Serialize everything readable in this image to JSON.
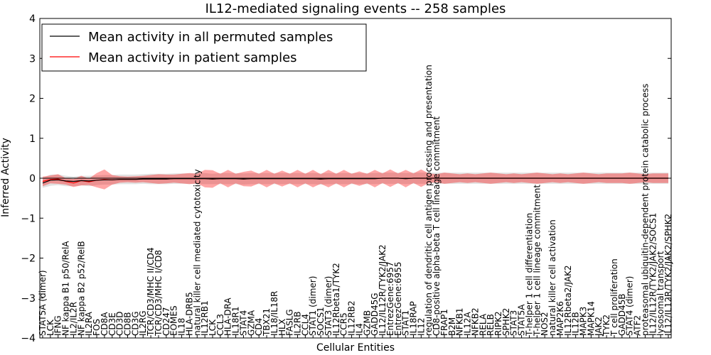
{
  "chart_data": {
    "type": "line",
    "title": "IL12-mediated signaling events -- 258 samples",
    "xlabel": "Cellular Entities",
    "ylabel": "Inferred Activity",
    "ylim": [
      -4,
      4
    ],
    "yticks": [
      4,
      3,
      2,
      1,
      0,
      -1,
      -2,
      -3,
      -4
    ],
    "ytick_labels": [
      "4",
      "3",
      "2",
      "1",
      "0",
      "−1",
      "−2",
      "−3",
      "−4"
    ],
    "grid": false,
    "legend_position": "upper-left",
    "categories": [
      "STAT5A (dimer)",
      "LCK",
      "IFNG",
      "NF kappa B1 p50/RelA",
      "IL2/IL2R",
      "NF kappa B2 p52/RelB",
      "IL2RA",
      "FOS",
      "CD8A",
      "CD3E",
      "CD3D",
      "CD8B",
      "CD3G",
      "IL2RG",
      "TCR/CD3/MHC II/CD4",
      "TCR/CD3/MHC I/CD8",
      "CD247",
      "EOMES",
      "IL18",
      "HLA-DRB5",
      "natural killer cell mediated cytotoxicity",
      "IL12RB1",
      "LCK",
      "CCL3",
      "HLA-DRA",
      "IL18R1",
      "STAT4",
      "GZMA",
      "CD4",
      "TBX21",
      "IL18/IL18R",
      "HLX",
      "FASLG",
      "IL2RB",
      "CCL4",
      "STAT1 (dimer)",
      "SOCS1",
      "STAT3 (dimer)",
      "IL12Rbeta1/TYK2",
      "CCR5",
      "IL12RB2",
      "IL4",
      "GZMB",
      "GADD45G",
      "IL12/IL12R/TYK2/JAK2",
      "EntrezGene:6957",
      "EntrezGene:6955",
      "STAT1",
      "IL18RAP",
      "IL12",
      "regulation of dendritic cell antigen processing and presentation",
      "CD8-positive alpha-beta T cell lineage commitment",
      "FRAP1",
      "B2M",
      "NFKB1",
      "IL12A",
      "NFKB2",
      "RELA",
      "RELB",
      "RIPK2",
      "SPHK2",
      "STAT3",
      "STAT5A",
      "T-helper 1 cell differentiation",
      "T-helper 1 cell lineage commitment",
      "NOS2",
      "natural killer cell activation",
      "MAP2K6",
      "IL12Rbeta2/JAK2",
      "IL12B",
      "MAPK3",
      "MAPK14",
      "JAK2",
      "TYK2",
      "T cell proliferation",
      "GADD45B",
      "STAT4 (dimer)",
      "ATF2",
      "proteasomal ubiquitin-dependent protein catabolic process",
      "IL12/IL12R/TYK2/JAK2/SOCS1",
      "lysosomal transport",
      "IL12/IL12R/TYK2/JAK2/SPHK2"
    ],
    "series": [
      {
        "name": "Mean activity in all permuted samples",
        "color": "#000000",
        "values": [
          -0.12,
          -0.05,
          -0.04,
          -0.07,
          -0.08,
          -0.06,
          -0.07,
          -0.05,
          -0.04,
          -0.04,
          -0.03,
          -0.03,
          -0.03,
          -0.02,
          -0.02,
          -0.02,
          -0.02,
          -0.01,
          -0.01,
          -0.01,
          -0.01,
          -0.01,
          -0.02,
          -0.01,
          -0.01,
          -0.01,
          -0.02,
          -0.01,
          -0.01,
          -0.01,
          -0.01,
          -0.01,
          -0.01,
          -0.01,
          -0.01,
          -0.01,
          -0.02,
          -0.01,
          -0.01,
          -0.01,
          -0.01,
          -0.01,
          -0.01,
          -0.01,
          0.0,
          0.0,
          0.0,
          -0.01,
          0.0,
          0.0,
          0.0,
          0.0,
          0.0,
          0.0,
          0.0,
          0.0,
          0.0,
          0.0,
          0.0,
          0.0,
          0.0,
          0.0,
          0.0,
          0.0,
          0.0,
          0.0,
          0.0,
          0.0,
          0.0,
          0.0,
          0.0,
          0.0,
          0.0,
          0.0,
          0.0,
          0.0,
          0.0,
          0.0,
          0.0,
          0.0,
          0.0,
          0.0
        ],
        "band": [
          0.12,
          0.14,
          0.13,
          0.13,
          0.12,
          0.12,
          0.13,
          0.12,
          0.12,
          0.12,
          0.12,
          0.12,
          0.12,
          0.12,
          0.13,
          0.13,
          0.13,
          0.13,
          0.13,
          0.13,
          0.14,
          0.14,
          0.13,
          0.14,
          0.14,
          0.14,
          0.14,
          0.14,
          0.14,
          0.14,
          0.14,
          0.14,
          0.14,
          0.14,
          0.14,
          0.14,
          0.14,
          0.14,
          0.14,
          0.14,
          0.14,
          0.14,
          0.14,
          0.14,
          0.14,
          0.14,
          0.14,
          0.14,
          0.14,
          0.14,
          0.14,
          0.14,
          0.14,
          0.14,
          0.14,
          0.14,
          0.14,
          0.14,
          0.14,
          0.14,
          0.14,
          0.14,
          0.14,
          0.14,
          0.14,
          0.14,
          0.14,
          0.14,
          0.14,
          0.14,
          0.14,
          0.14,
          0.14,
          0.14,
          0.14,
          0.14,
          0.14,
          0.14,
          0.14,
          0.14,
          0.14,
          0.14
        ]
      },
      {
        "name": "Mean activity in patient samples",
        "color": "#ff0000",
        "values": [
          -0.08,
          -0.03,
          -0.02,
          -0.08,
          -0.12,
          -0.06,
          -0.09,
          -0.05,
          -0.03,
          -0.04,
          -0.03,
          -0.03,
          -0.03,
          -0.02,
          -0.02,
          -0.02,
          -0.02,
          -0.01,
          -0.01,
          -0.01,
          -0.01,
          -0.01,
          -0.02,
          -0.01,
          -0.01,
          -0.01,
          -0.02,
          -0.01,
          -0.01,
          -0.01,
          -0.01,
          -0.01,
          -0.01,
          -0.01,
          -0.01,
          -0.01,
          -0.02,
          -0.01,
          -0.01,
          -0.01,
          -0.01,
          -0.01,
          -0.01,
          -0.01,
          0.0,
          0.0,
          0.0,
          -0.01,
          0.0,
          0.0,
          0.0,
          0.0,
          0.0,
          0.0,
          0.0,
          0.0,
          0.0,
          0.0,
          0.0,
          0.0,
          0.0,
          0.0,
          0.0,
          0.0,
          0.0,
          0.0,
          0.0,
          0.0,
          0.0,
          0.0,
          0.0,
          0.0,
          0.0,
          0.0,
          0.0,
          0.0,
          0.0,
          0.0,
          0.0,
          0.0,
          0.0,
          0.0
        ],
        "band": [
          0.12,
          0.1,
          0.12,
          0.08,
          0.1,
          0.12,
          0.08,
          0.18,
          0.25,
          0.12,
          0.08,
          0.07,
          0.08,
          0.08,
          0.1,
          0.12,
          0.11,
          0.1,
          0.12,
          0.14,
          0.12,
          0.22,
          0.22,
          0.12,
          0.22,
          0.12,
          0.18,
          0.2,
          0.12,
          0.22,
          0.12,
          0.2,
          0.12,
          0.22,
          0.12,
          0.22,
          0.12,
          0.22,
          0.12,
          0.22,
          0.12,
          0.18,
          0.12,
          0.22,
          0.12,
          0.22,
          0.12,
          0.22,
          0.12,
          0.22,
          0.12,
          0.1,
          0.14,
          0.12,
          0.1,
          0.12,
          0.1,
          0.12,
          0.14,
          0.12,
          0.1,
          0.12,
          0.1,
          0.12,
          0.14,
          0.12,
          0.1,
          0.12,
          0.1,
          0.12,
          0.14,
          0.12,
          0.1,
          0.12,
          0.12,
          0.12,
          0.14,
          0.12,
          0.1,
          0.12,
          0.12,
          0.12
        ]
      }
    ]
  }
}
